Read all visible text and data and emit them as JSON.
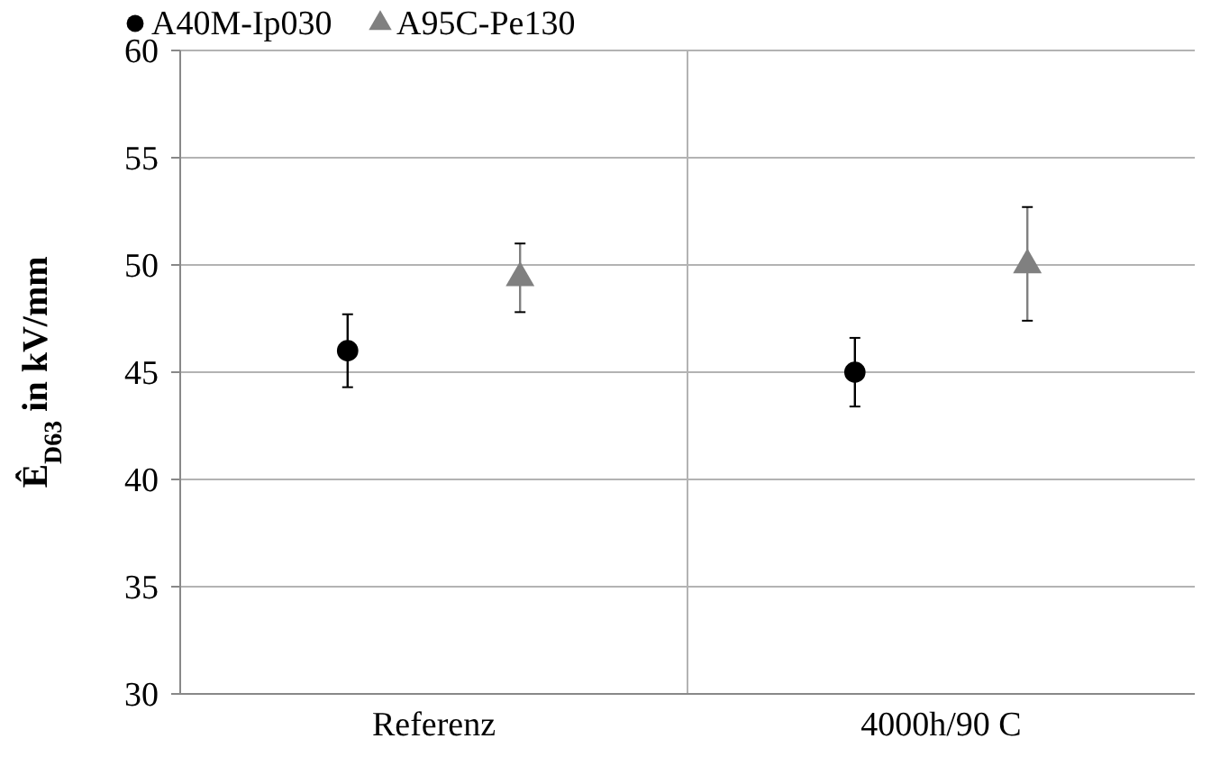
{
  "chart_data": {
    "type": "scatter",
    "ylabel": "Ê$_{D63}$ in kV/mm",
    "categories": [
      "Referenz",
      "4000h/90 C"
    ],
    "series": [
      {
        "name": "A40M-Ip030",
        "color": "#000000",
        "marker": "circle",
        "values": [
          46,
          45
        ],
        "errors": [
          [
            44.3,
            47.7
          ],
          [
            43.4,
            46.6
          ]
        ]
      },
      {
        "name": "A95C-Pe130",
        "color": "#808080",
        "marker": "triangle",
        "values": [
          49.4,
          50
        ],
        "errors": [
          [
            47.8,
            51.0
          ],
          [
            47.4,
            52.7
          ]
        ]
      }
    ],
    "ylim": [
      30,
      60
    ],
    "yticks": [
      30,
      35,
      40,
      45,
      50,
      55,
      60
    ],
    "grid": true,
    "legend": "top left"
  }
}
